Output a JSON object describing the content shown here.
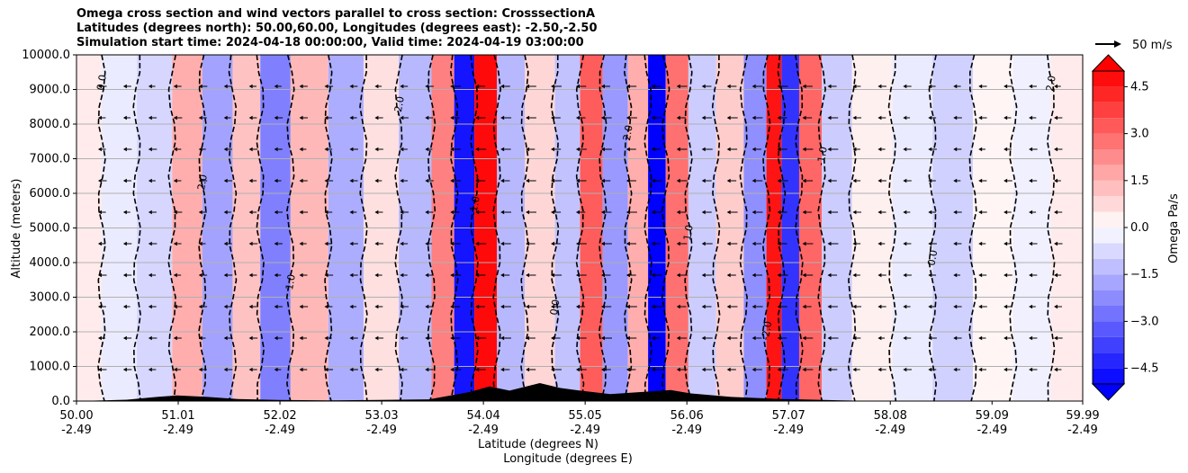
{
  "chart_data": {
    "type": "heatmap",
    "title_lines": [
      "Omega cross section and wind vectors parallel to cross section: CrosssectionA",
      "Latitudes (degrees north): 50.00,60.00, Longitudes (degrees east): -2.50,-2.50",
      "Simulation start time: 2024-04-18 00:00:00, Valid time: 2024-04-19 03:00:00"
    ],
    "ylabel": "Altitude (meters)",
    "xlabel_lat": "Latitude (degrees N)",
    "xlabel_lon": "Longitude (degrees E)",
    "ylim": [
      0,
      10000
    ],
    "yticks": [
      "0.0",
      "1000.0",
      "2000.0",
      "3000.0",
      "4000.0",
      "5000.0",
      "6000.0",
      "7000.0",
      "8000.0",
      "9000.0",
      "10000.0"
    ],
    "xticks_lat": [
      "50.00",
      "51.01",
      "52.02",
      "53.03",
      "54.04",
      "55.05",
      "56.06",
      "57.07",
      "58.08",
      "59.09",
      "59.99"
    ],
    "xticks_lon": [
      "-2.49",
      "-2.49",
      "-2.49",
      "-2.49",
      "-2.49",
      "-2.49",
      "-2.49",
      "-2.49",
      "-2.49",
      "-2.49",
      "-2.49"
    ],
    "colorbar_label": "Omega Pa/s",
    "colorbar_ticks": [
      "4.5",
      "3.0",
      "1.5",
      "0.0",
      "−1.5",
      "−3.0",
      "−4.5"
    ],
    "colorbar_range": [
      -5.0,
      5.0
    ],
    "vector_key_label": "50 m/s",
    "omega_columns": [
      {
        "lat": 50.1,
        "value": 0.4
      },
      {
        "lat": 50.4,
        "value": -0.4
      },
      {
        "lat": 50.8,
        "value": -0.8
      },
      {
        "lat": 51.1,
        "value": 1.6
      },
      {
        "lat": 51.4,
        "value": -1.8
      },
      {
        "lat": 51.7,
        "value": 1.2
      },
      {
        "lat": 51.95,
        "value": -2.5
      },
      {
        "lat": 52.3,
        "value": 1.4
      },
      {
        "lat": 52.7,
        "value": -1.6
      },
      {
        "lat": 53.0,
        "value": 0.6
      },
      {
        "lat": 53.4,
        "value": -1.4
      },
      {
        "lat": 53.65,
        "value": 2.5
      },
      {
        "lat": 53.85,
        "value": -4.6
      },
      {
        "lat": 54.05,
        "value": 4.8
      },
      {
        "lat": 54.3,
        "value": -1.4
      },
      {
        "lat": 54.6,
        "value": 0.8
      },
      {
        "lat": 54.9,
        "value": -1.2
      },
      {
        "lat": 55.1,
        "value": 3.2
      },
      {
        "lat": 55.35,
        "value": -2.0
      },
      {
        "lat": 55.6,
        "value": 1.6
      },
      {
        "lat": 55.75,
        "value": -5.0
      },
      {
        "lat": 55.95,
        "value": 2.8
      },
      {
        "lat": 56.2,
        "value": -1.0
      },
      {
        "lat": 56.5,
        "value": 1.0
      },
      {
        "lat": 56.75,
        "value": -2.2
      },
      {
        "lat": 56.95,
        "value": 4.6
      },
      {
        "lat": 57.05,
        "value": -4.0
      },
      {
        "lat": 57.3,
        "value": 3.0
      },
      {
        "lat": 57.5,
        "value": -1.0
      },
      {
        "lat": 57.9,
        "value": 0.3
      },
      {
        "lat": 58.3,
        "value": -0.4
      },
      {
        "lat": 58.7,
        "value": -0.9
      },
      {
        "lat": 59.1,
        "value": 0.2
      },
      {
        "lat": 59.5,
        "value": -0.3
      },
      {
        "lat": 59.85,
        "value": 0.4
      }
    ],
    "contour_labels": [
      "0.0",
      "1.0",
      "-1.0",
      "2.0",
      "-2.0"
    ],
    "terrain": [
      {
        "lat": 50.0,
        "alt": 0
      },
      {
        "lat": 50.5,
        "alt": 40
      },
      {
        "lat": 50.8,
        "alt": 120
      },
      {
        "lat": 51.0,
        "alt": 160
      },
      {
        "lat": 51.3,
        "alt": 120
      },
      {
        "lat": 51.6,
        "alt": 60
      },
      {
        "lat": 52.0,
        "alt": 30
      },
      {
        "lat": 52.5,
        "alt": 20
      },
      {
        "lat": 53.0,
        "alt": 30
      },
      {
        "lat": 53.5,
        "alt": 50
      },
      {
        "lat": 53.9,
        "alt": 260
      },
      {
        "lat": 54.1,
        "alt": 420
      },
      {
        "lat": 54.3,
        "alt": 300
      },
      {
        "lat": 54.6,
        "alt": 520
      },
      {
        "lat": 54.8,
        "alt": 380
      },
      {
        "lat": 55.0,
        "alt": 300
      },
      {
        "lat": 55.3,
        "alt": 200
      },
      {
        "lat": 55.6,
        "alt": 260
      },
      {
        "lat": 55.9,
        "alt": 320
      },
      {
        "lat": 56.1,
        "alt": 220
      },
      {
        "lat": 56.5,
        "alt": 120
      },
      {
        "lat": 57.0,
        "alt": 60
      },
      {
        "lat": 57.6,
        "alt": 20
      },
      {
        "lat": 58.0,
        "alt": 0
      },
      {
        "lat": 59.99,
        "alt": 0
      }
    ],
    "wind_direction": "southward (leftward arrows)"
  }
}
